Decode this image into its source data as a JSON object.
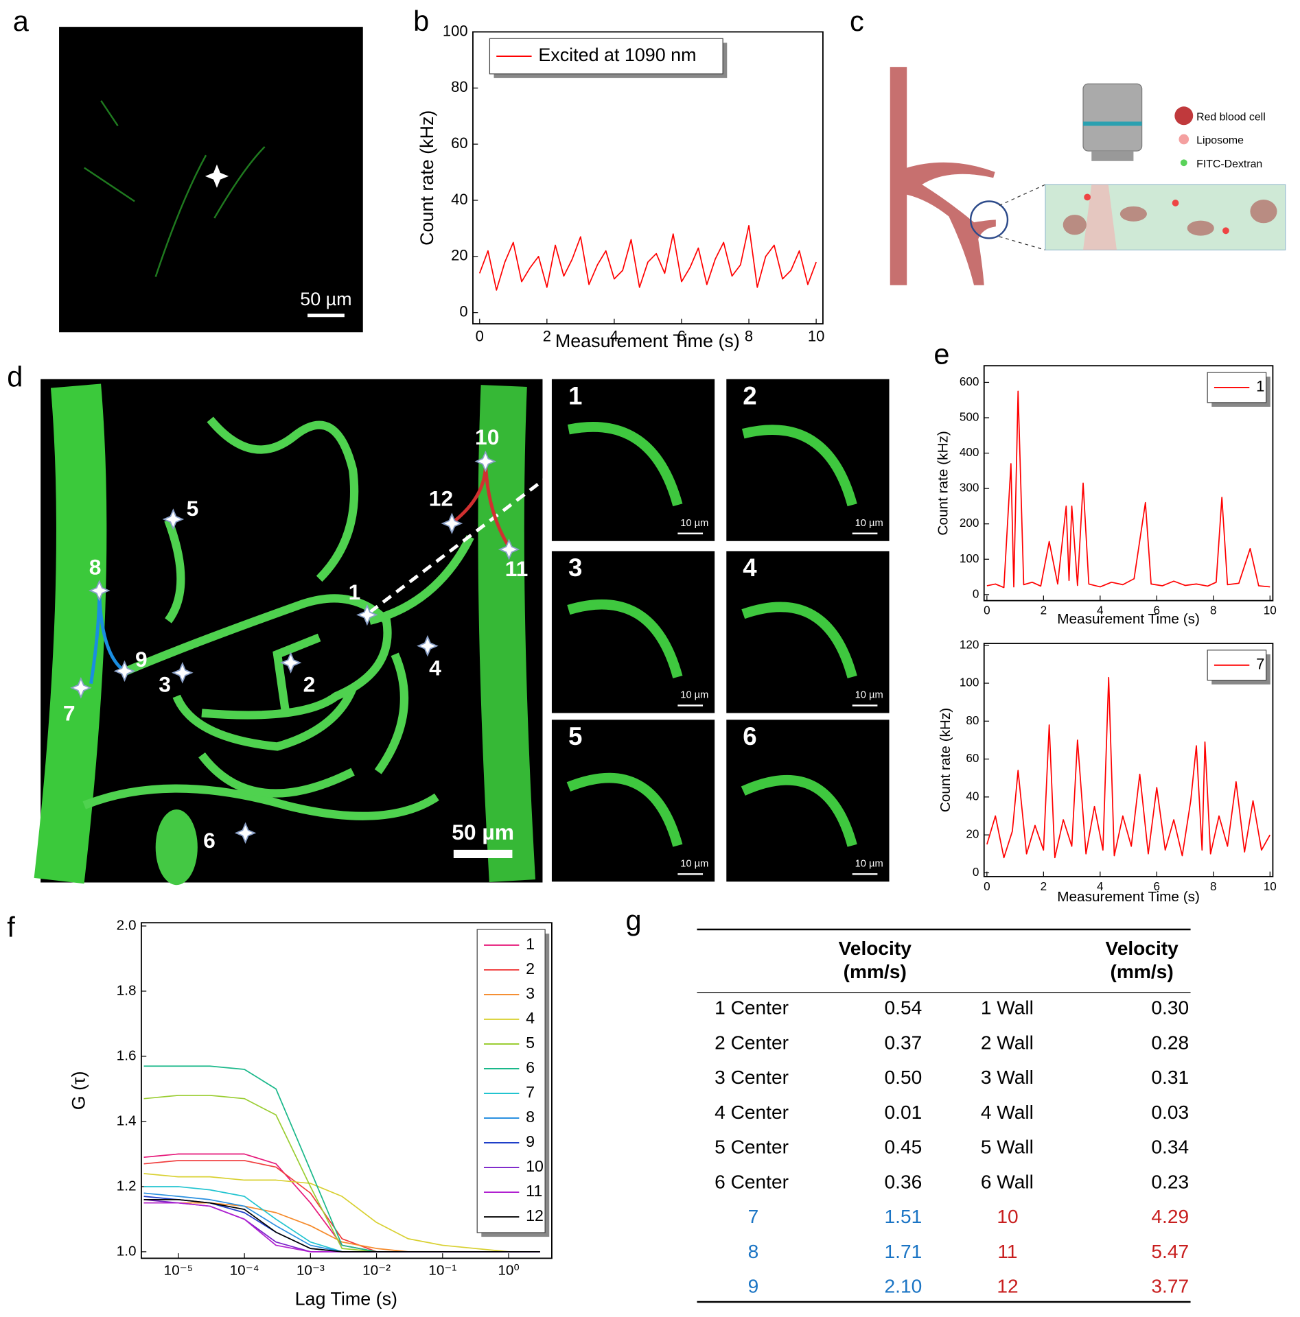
{
  "figure": {
    "panel_labels": [
      "a",
      "b",
      "c",
      "d",
      "e",
      "f",
      "g"
    ],
    "a_scale": "50 µm",
    "c_legend": [
      "Red blood cell",
      "Liposome",
      "FITC-Dextran"
    ],
    "d_points": [
      "1",
      "2",
      "3",
      "4",
      "5",
      "6",
      "7",
      "8",
      "9",
      "10",
      "11",
      "12"
    ],
    "d_scale": "50 µm",
    "d_insets": [
      "1",
      "2",
      "3",
      "4",
      "5",
      "6"
    ],
    "d_inset_scale": "10 µm"
  },
  "chart_data": [
    {
      "type": "line",
      "xlabel": "Measurement Time (s)",
      "ylabel": "Count rate (kHz)",
      "xlim": [
        -0.2,
        10.2
      ],
      "ylim": [
        -4,
        100
      ],
      "xticks": [
        0,
        2,
        4,
        6,
        8,
        10
      ],
      "yticks": [
        0,
        20,
        40,
        60,
        80,
        100
      ],
      "legend": "upper left",
      "x": [
        0,
        0.25,
        0.5,
        0.75,
        1,
        1.25,
        1.5,
        1.75,
        2,
        2.25,
        2.5,
        2.75,
        3,
        3.25,
        3.5,
        3.75,
        4,
        4.25,
        4.5,
        4.75,
        5,
        5.25,
        5.5,
        5.75,
        6,
        6.25,
        6.5,
        6.75,
        7,
        7.25,
        7.5,
        7.75,
        8,
        8.25,
        8.5,
        8.75,
        9,
        9.25,
        9.5,
        9.75,
        10
      ],
      "series": [
        {
          "name": "Excited at 1090 nm",
          "color": "#ff0000",
          "values": [
            14,
            22,
            8,
            18,
            25,
            11,
            16,
            20,
            9,
            24,
            13,
            19,
            27,
            10,
            17,
            22,
            12,
            15,
            26,
            9,
            18,
            21,
            14,
            28,
            11,
            16,
            23,
            10,
            19,
            25,
            13,
            17,
            31,
            9,
            20,
            24,
            12,
            15,
            22,
            10,
            18
          ]
        }
      ]
    },
    {
      "type": "line",
      "xlabel": "Measurement Time (s)",
      "ylabel": "Count rate (kHz)",
      "xlim": [
        -0.1,
        10.1
      ],
      "ylim": [
        -17,
        647
      ],
      "xticks": [
        0,
        2,
        4,
        6,
        8,
        10
      ],
      "yticks": [
        0,
        100,
        200,
        300,
        400,
        500,
        600
      ],
      "legend": "upper right",
      "x": [
        0,
        0.3,
        0.6,
        0.85,
        0.95,
        1.1,
        1.3,
        1.6,
        1.9,
        2.2,
        2.5,
        2.8,
        2.9,
        3.0,
        3.2,
        3.4,
        3.6,
        4.0,
        4.4,
        4.8,
        5.2,
        5.6,
        5.8,
        6.2,
        6.6,
        7.0,
        7.4,
        7.8,
        8.1,
        8.3,
        8.5,
        8.9,
        9.3,
        9.6,
        10
      ],
      "series": [
        {
          "name": "1",
          "color": "#ff0000",
          "values": [
            25,
            30,
            20,
            370,
            22,
            575,
            28,
            35,
            24,
            150,
            30,
            250,
            40,
            250,
            26,
            315,
            30,
            22,
            35,
            28,
            45,
            260,
            30,
            25,
            38,
            26,
            30,
            24,
            35,
            275,
            28,
            32,
            130,
            25,
            22
          ]
        }
      ]
    },
    {
      "type": "line",
      "xlabel": "Measurement Time (s)",
      "ylabel": "Count rate (kHz)",
      "xlim": [
        -0.1,
        10.1
      ],
      "ylim": [
        -2,
        121
      ],
      "xticks": [
        0,
        2,
        4,
        6,
        8,
        10
      ],
      "yticks": [
        0,
        20,
        40,
        60,
        80,
        100,
        120
      ],
      "legend": "upper right",
      "x": [
        0,
        0.3,
        0.6,
        0.9,
        1.1,
        1.4,
        1.7,
        2.0,
        2.2,
        2.4,
        2.7,
        3.0,
        3.2,
        3.5,
        3.8,
        4.1,
        4.3,
        4.5,
        4.8,
        5.1,
        5.4,
        5.7,
        6.0,
        6.3,
        6.6,
        6.9,
        7.2,
        7.4,
        7.6,
        7.7,
        7.9,
        8.2,
        8.5,
        8.8,
        9.1,
        9.4,
        9.7,
        10
      ],
      "series": [
        {
          "name": "7",
          "color": "#ff0000",
          "values": [
            15,
            30,
            8,
            22,
            54,
            10,
            25,
            12,
            78,
            8,
            28,
            14,
            70,
            10,
            35,
            12,
            103,
            9,
            30,
            14,
            52,
            10,
            45,
            12,
            28,
            9,
            38,
            67,
            12,
            69,
            10,
            30,
            14,
            48,
            11,
            38,
            12,
            20
          ]
        }
      ]
    },
    {
      "type": "line",
      "xlabel": "Lag Time (s)",
      "ylabel": "G (τ)",
      "xlog": true,
      "xlim": [
        2.75e-06,
        4.5
      ],
      "ylim": [
        0.98,
        2.01
      ],
      "xticks": [
        {
          "value": 1e-05,
          "label": "10⁻⁵"
        },
        {
          "value": 0.0001,
          "label": "10⁻⁴"
        },
        {
          "value": 0.001,
          "label": "10⁻³"
        },
        {
          "value": 0.01,
          "label": "10⁻²"
        },
        {
          "value": 0.1,
          "label": "10⁻¹"
        },
        {
          "value": 1,
          "label": "10⁰"
        }
      ],
      "yticks": [
        {
          "value": 1,
          "label": "1.0"
        },
        1.2,
        1.4,
        1.6,
        1.8,
        {
          "value": 2,
          "label": "2.0"
        }
      ],
      "legend": "upper right",
      "x": [
        3e-06,
        1e-05,
        3e-05,
        0.0001,
        0.0003,
        0.001,
        0.003,
        0.01,
        0.03,
        0.1,
        1,
        3
      ],
      "series": [
        {
          "name": "1",
          "color": "#e6197a",
          "values": [
            1.29,
            1.3,
            1.3,
            1.3,
            1.27,
            1.15,
            1.02,
            1.0,
            1.0,
            1.0,
            1.0,
            1.0
          ]
        },
        {
          "name": "2",
          "color": "#f03c3c",
          "values": [
            1.27,
            1.28,
            1.28,
            1.28,
            1.26,
            1.18,
            1.04,
            1.0,
            1.0,
            1.0,
            1.0,
            1.0
          ]
        },
        {
          "name": "3",
          "color": "#f58a2a",
          "values": [
            1.15,
            1.15,
            1.15,
            1.14,
            1.12,
            1.08,
            1.03,
            1.01,
            1.0,
            1.0,
            1.0,
            1.0
          ]
        },
        {
          "name": "4",
          "color": "#d8d030",
          "values": [
            1.24,
            1.23,
            1.23,
            1.22,
            1.22,
            1.21,
            1.17,
            1.09,
            1.04,
            1.02,
            1.0,
            1.0
          ]
        },
        {
          "name": "5",
          "color": "#9acd32",
          "values": [
            1.47,
            1.48,
            1.48,
            1.47,
            1.42,
            1.2,
            1.01,
            1.0,
            1.0,
            1.0,
            1.0,
            1.0
          ]
        },
        {
          "name": "6",
          "color": "#1ab88a",
          "values": [
            1.57,
            1.57,
            1.57,
            1.56,
            1.5,
            1.25,
            1.02,
            1.0,
            1.0,
            1.0,
            1.0,
            1.0
          ]
        },
        {
          "name": "7",
          "color": "#22c4d0",
          "values": [
            1.2,
            1.2,
            1.19,
            1.17,
            1.1,
            1.03,
            1.0,
            1.0,
            1.0,
            1.0,
            1.0,
            1.0
          ]
        },
        {
          "name": "8",
          "color": "#2a90e0",
          "values": [
            1.18,
            1.17,
            1.16,
            1.14,
            1.08,
            1.02,
            1.0,
            1.0,
            1.0,
            1.0,
            1.0,
            1.0
          ]
        },
        {
          "name": "9",
          "color": "#1f3fc8",
          "values": [
            1.17,
            1.16,
            1.15,
            1.12,
            1.06,
            1.01,
            1.0,
            1.0,
            1.0,
            1.0,
            1.0,
            1.0
          ]
        },
        {
          "name": "10",
          "color": "#7a1fc8",
          "values": [
            1.16,
            1.15,
            1.14,
            1.1,
            1.03,
            1.0,
            1.0,
            1.0,
            1.0,
            1.0,
            1.0,
            1.0
          ]
        },
        {
          "name": "11",
          "color": "#b020d0",
          "values": [
            1.15,
            1.15,
            1.14,
            1.1,
            1.02,
            1.0,
            1.0,
            1.0,
            1.0,
            1.0,
            1.0,
            1.0
          ]
        },
        {
          "name": "12",
          "color": "#000000",
          "values": [
            1.16,
            1.16,
            1.15,
            1.13,
            1.06,
            1.01,
            1.0,
            1.0,
            1.0,
            1.0,
            1.0,
            1.0
          ]
        }
      ]
    }
  ],
  "table": {
    "header": [
      [
        "Velocity",
        "(mm/s)"
      ],
      [
        "Velocity",
        "(mm/s)"
      ]
    ],
    "rows": [
      [
        "1 Center",
        "0.54",
        "1 Wall",
        "0.30"
      ],
      [
        "2 Center",
        "0.37",
        "2 Wall",
        "0.28"
      ],
      [
        "3 Center",
        "0.50",
        "3 Wall",
        "0.31"
      ],
      [
        "4 Center",
        "0.01",
        "4 Wall",
        "0.03"
      ],
      [
        "5 Center",
        "0.45",
        "5 Wall",
        "0.34"
      ],
      [
        "6 Center",
        "0.36",
        "6 Wall",
        "0.23"
      ],
      [
        "7",
        "1.51",
        "10",
        "4.29"
      ],
      [
        "8",
        "1.71",
        "11",
        "5.47"
      ],
      [
        "9",
        "2.10",
        "12",
        "3.77"
      ]
    ]
  }
}
